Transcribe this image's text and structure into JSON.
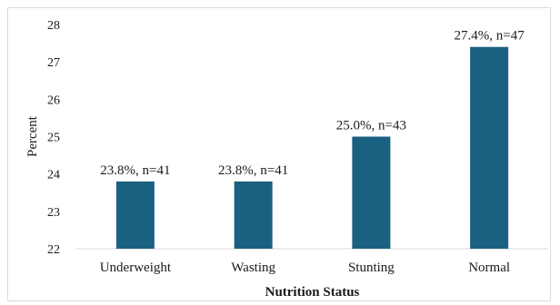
{
  "chart_data": {
    "type": "bar",
    "categories": [
      "Underweight",
      "Wasting",
      "Stunting",
      "Normal"
    ],
    "values": [
      23.8,
      23.8,
      25.0,
      27.4
    ],
    "data_labels": [
      "23.8%, n=41",
      "23.8%, n=41",
      "25.0%, n=43",
      "27.4%, n=47"
    ],
    "title": "",
    "xlabel": "Nutrition Status",
    "ylabel": "Percent",
    "ylim": [
      22,
      28
    ],
    "yticks": [
      22,
      23,
      24,
      25,
      26,
      27,
      28
    ],
    "grid": false,
    "legend": "none",
    "bar_color": "#1a6080"
  }
}
